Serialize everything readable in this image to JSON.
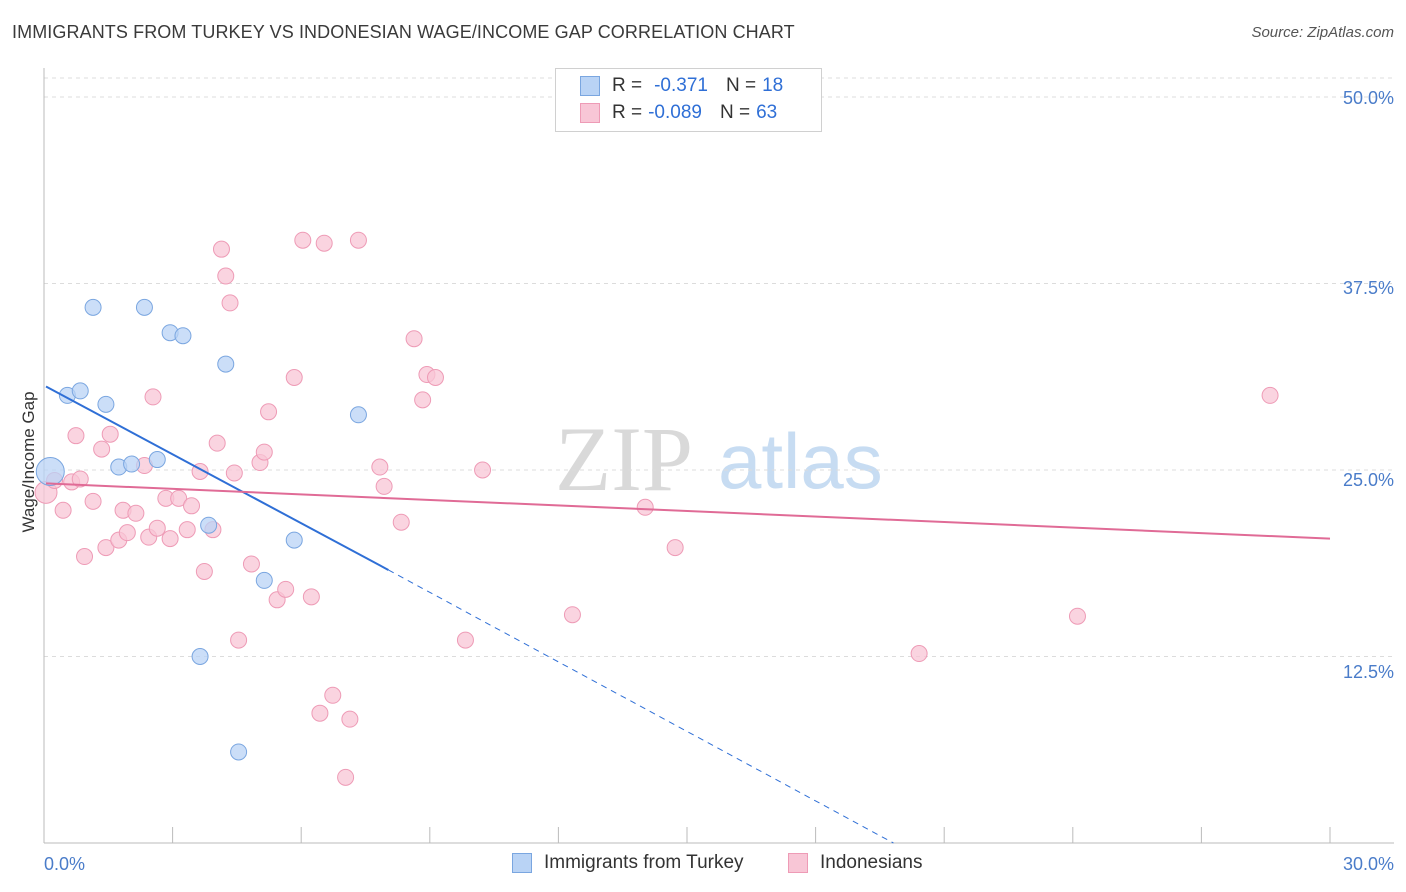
{
  "title": "IMMIGRANTS FROM TURKEY VS INDONESIAN WAGE/INCOME GAP CORRELATION CHART",
  "source": "Source: ZipAtlas.com",
  "watermark": {
    "zip": "ZIP",
    "atlas": "atlas"
  },
  "colors": {
    "blue_fill": "#b9d3f5",
    "blue_stroke": "#7aa6e0",
    "blue_line": "#2f6fd6",
    "pink_fill": "#f8c6d6",
    "pink_stroke": "#ee9bb6",
    "pink_line": "#e06b96",
    "grid": "#dcdcdc",
    "tick_text": "#4a7cc9"
  },
  "legend": {
    "series1": {
      "r_label": "R =",
      "r_value": "-0.371",
      "n_label": "N =",
      "n_value": "18"
    },
    "series2": {
      "r_label": "R =",
      "r_value": "-0.089",
      "n_label": "N =",
      "n_value": "63"
    }
  },
  "bottom_legend": {
    "series1": "Immigrants from Turkey",
    "series2": "Indonesians"
  },
  "chart_data": {
    "type": "scatter",
    "title": "IMMIGRANTS FROM TURKEY VS INDONESIAN WAGE/INCOME GAP CORRELATION CHART",
    "xlabel": "",
    "ylabel": "Wage/Income Gap",
    "xlim": [
      0,
      30
    ],
    "ylim": [
      0,
      50
    ],
    "x_tick_labels": [
      "0.0%",
      "30.0%"
    ],
    "y_ticks": [
      12.5,
      25.0,
      37.5,
      50.0
    ],
    "y_tick_labels": [
      "12.5%",
      "25.0%",
      "37.5%",
      "50.0%"
    ],
    "grid": true,
    "series": [
      {
        "name": "Immigrants from Turkey",
        "points": [
          [
            0.1,
            24.9,
            14
          ],
          [
            0.5,
            30.0,
            8
          ],
          [
            0.8,
            30.3,
            8
          ],
          [
            1.1,
            35.9,
            8
          ],
          [
            1.4,
            29.4,
            8
          ],
          [
            1.7,
            25.2,
            8
          ],
          [
            2.0,
            25.4,
            8
          ],
          [
            2.3,
            35.9,
            8
          ],
          [
            2.6,
            25.7,
            8
          ],
          [
            2.9,
            34.2,
            8
          ],
          [
            3.2,
            34.0,
            8
          ],
          [
            3.6,
            12.5,
            8
          ],
          [
            3.8,
            21.3,
            8
          ],
          [
            4.2,
            32.1,
            8
          ],
          [
            4.5,
            6.1,
            8
          ],
          [
            5.1,
            17.6,
            8
          ],
          [
            5.8,
            20.3,
            8
          ],
          [
            7.3,
            28.7,
            8
          ]
        ],
        "trend": {
          "x0": 0.0,
          "y0": 30.6,
          "x1": 8.0,
          "y1": 18.3,
          "dash_to_x": 19.8,
          "dash_to_y": 0.0
        }
      },
      {
        "name": "Indonesians",
        "points": [
          [
            0.0,
            23.5,
            11
          ],
          [
            0.2,
            24.3,
            8
          ],
          [
            0.4,
            22.3,
            8
          ],
          [
            0.6,
            24.2,
            8
          ],
          [
            0.7,
            27.3,
            8
          ],
          [
            0.8,
            24.4,
            8
          ],
          [
            0.9,
            19.2,
            8
          ],
          [
            1.1,
            22.9,
            8
          ],
          [
            1.3,
            26.4,
            8
          ],
          [
            1.4,
            19.8,
            8
          ],
          [
            1.5,
            27.4,
            8
          ],
          [
            1.7,
            20.3,
            8
          ],
          [
            1.8,
            22.3,
            8
          ],
          [
            1.9,
            20.8,
            8
          ],
          [
            2.1,
            22.1,
            8
          ],
          [
            2.3,
            25.3,
            8
          ],
          [
            2.4,
            20.5,
            8
          ],
          [
            2.5,
            29.9,
            8
          ],
          [
            2.6,
            21.1,
            8
          ],
          [
            2.8,
            23.1,
            8
          ],
          [
            2.9,
            20.4,
            8
          ],
          [
            3.1,
            23.1,
            8
          ],
          [
            3.3,
            21.0,
            8
          ],
          [
            3.4,
            22.6,
            8
          ],
          [
            3.6,
            24.9,
            8
          ],
          [
            3.7,
            18.2,
            8
          ],
          [
            3.9,
            21.0,
            8
          ],
          [
            4.0,
            26.8,
            8
          ],
          [
            4.1,
            39.8,
            8
          ],
          [
            4.2,
            38.0,
            8
          ],
          [
            4.3,
            36.2,
            8
          ],
          [
            4.4,
            24.8,
            8
          ],
          [
            4.5,
            13.6,
            8
          ],
          [
            4.8,
            18.7,
            8
          ],
          [
            5.0,
            25.5,
            8
          ],
          [
            5.1,
            26.2,
            8
          ],
          [
            5.2,
            28.9,
            8
          ],
          [
            5.4,
            16.3,
            8
          ],
          [
            5.6,
            17.0,
            8
          ],
          [
            5.8,
            31.2,
            8
          ],
          [
            6.0,
            40.4,
            8
          ],
          [
            6.2,
            16.5,
            8
          ],
          [
            6.4,
            8.7,
            8
          ],
          [
            6.5,
            40.2,
            8
          ],
          [
            6.7,
            9.9,
            8
          ],
          [
            7.0,
            4.4,
            8
          ],
          [
            7.1,
            8.3,
            8
          ],
          [
            7.3,
            40.4,
            8
          ],
          [
            7.8,
            25.2,
            8
          ],
          [
            7.9,
            23.9,
            8
          ],
          [
            8.3,
            21.5,
            8
          ],
          [
            8.6,
            33.8,
            8
          ],
          [
            8.8,
            29.7,
            8
          ],
          [
            8.9,
            31.4,
            8
          ],
          [
            9.1,
            31.2,
            8
          ],
          [
            9.8,
            13.6,
            8
          ],
          [
            10.2,
            25.0,
            8
          ],
          [
            12.3,
            15.3,
            8
          ],
          [
            14.0,
            22.5,
            8
          ],
          [
            14.7,
            19.8,
            8
          ],
          [
            20.4,
            12.7,
            8
          ],
          [
            24.1,
            15.2,
            8
          ],
          [
            28.6,
            30.0,
            8
          ]
        ],
        "trend": {
          "x0": 0.0,
          "y0": 24.1,
          "x1": 30.0,
          "y1": 20.4
        }
      }
    ]
  }
}
